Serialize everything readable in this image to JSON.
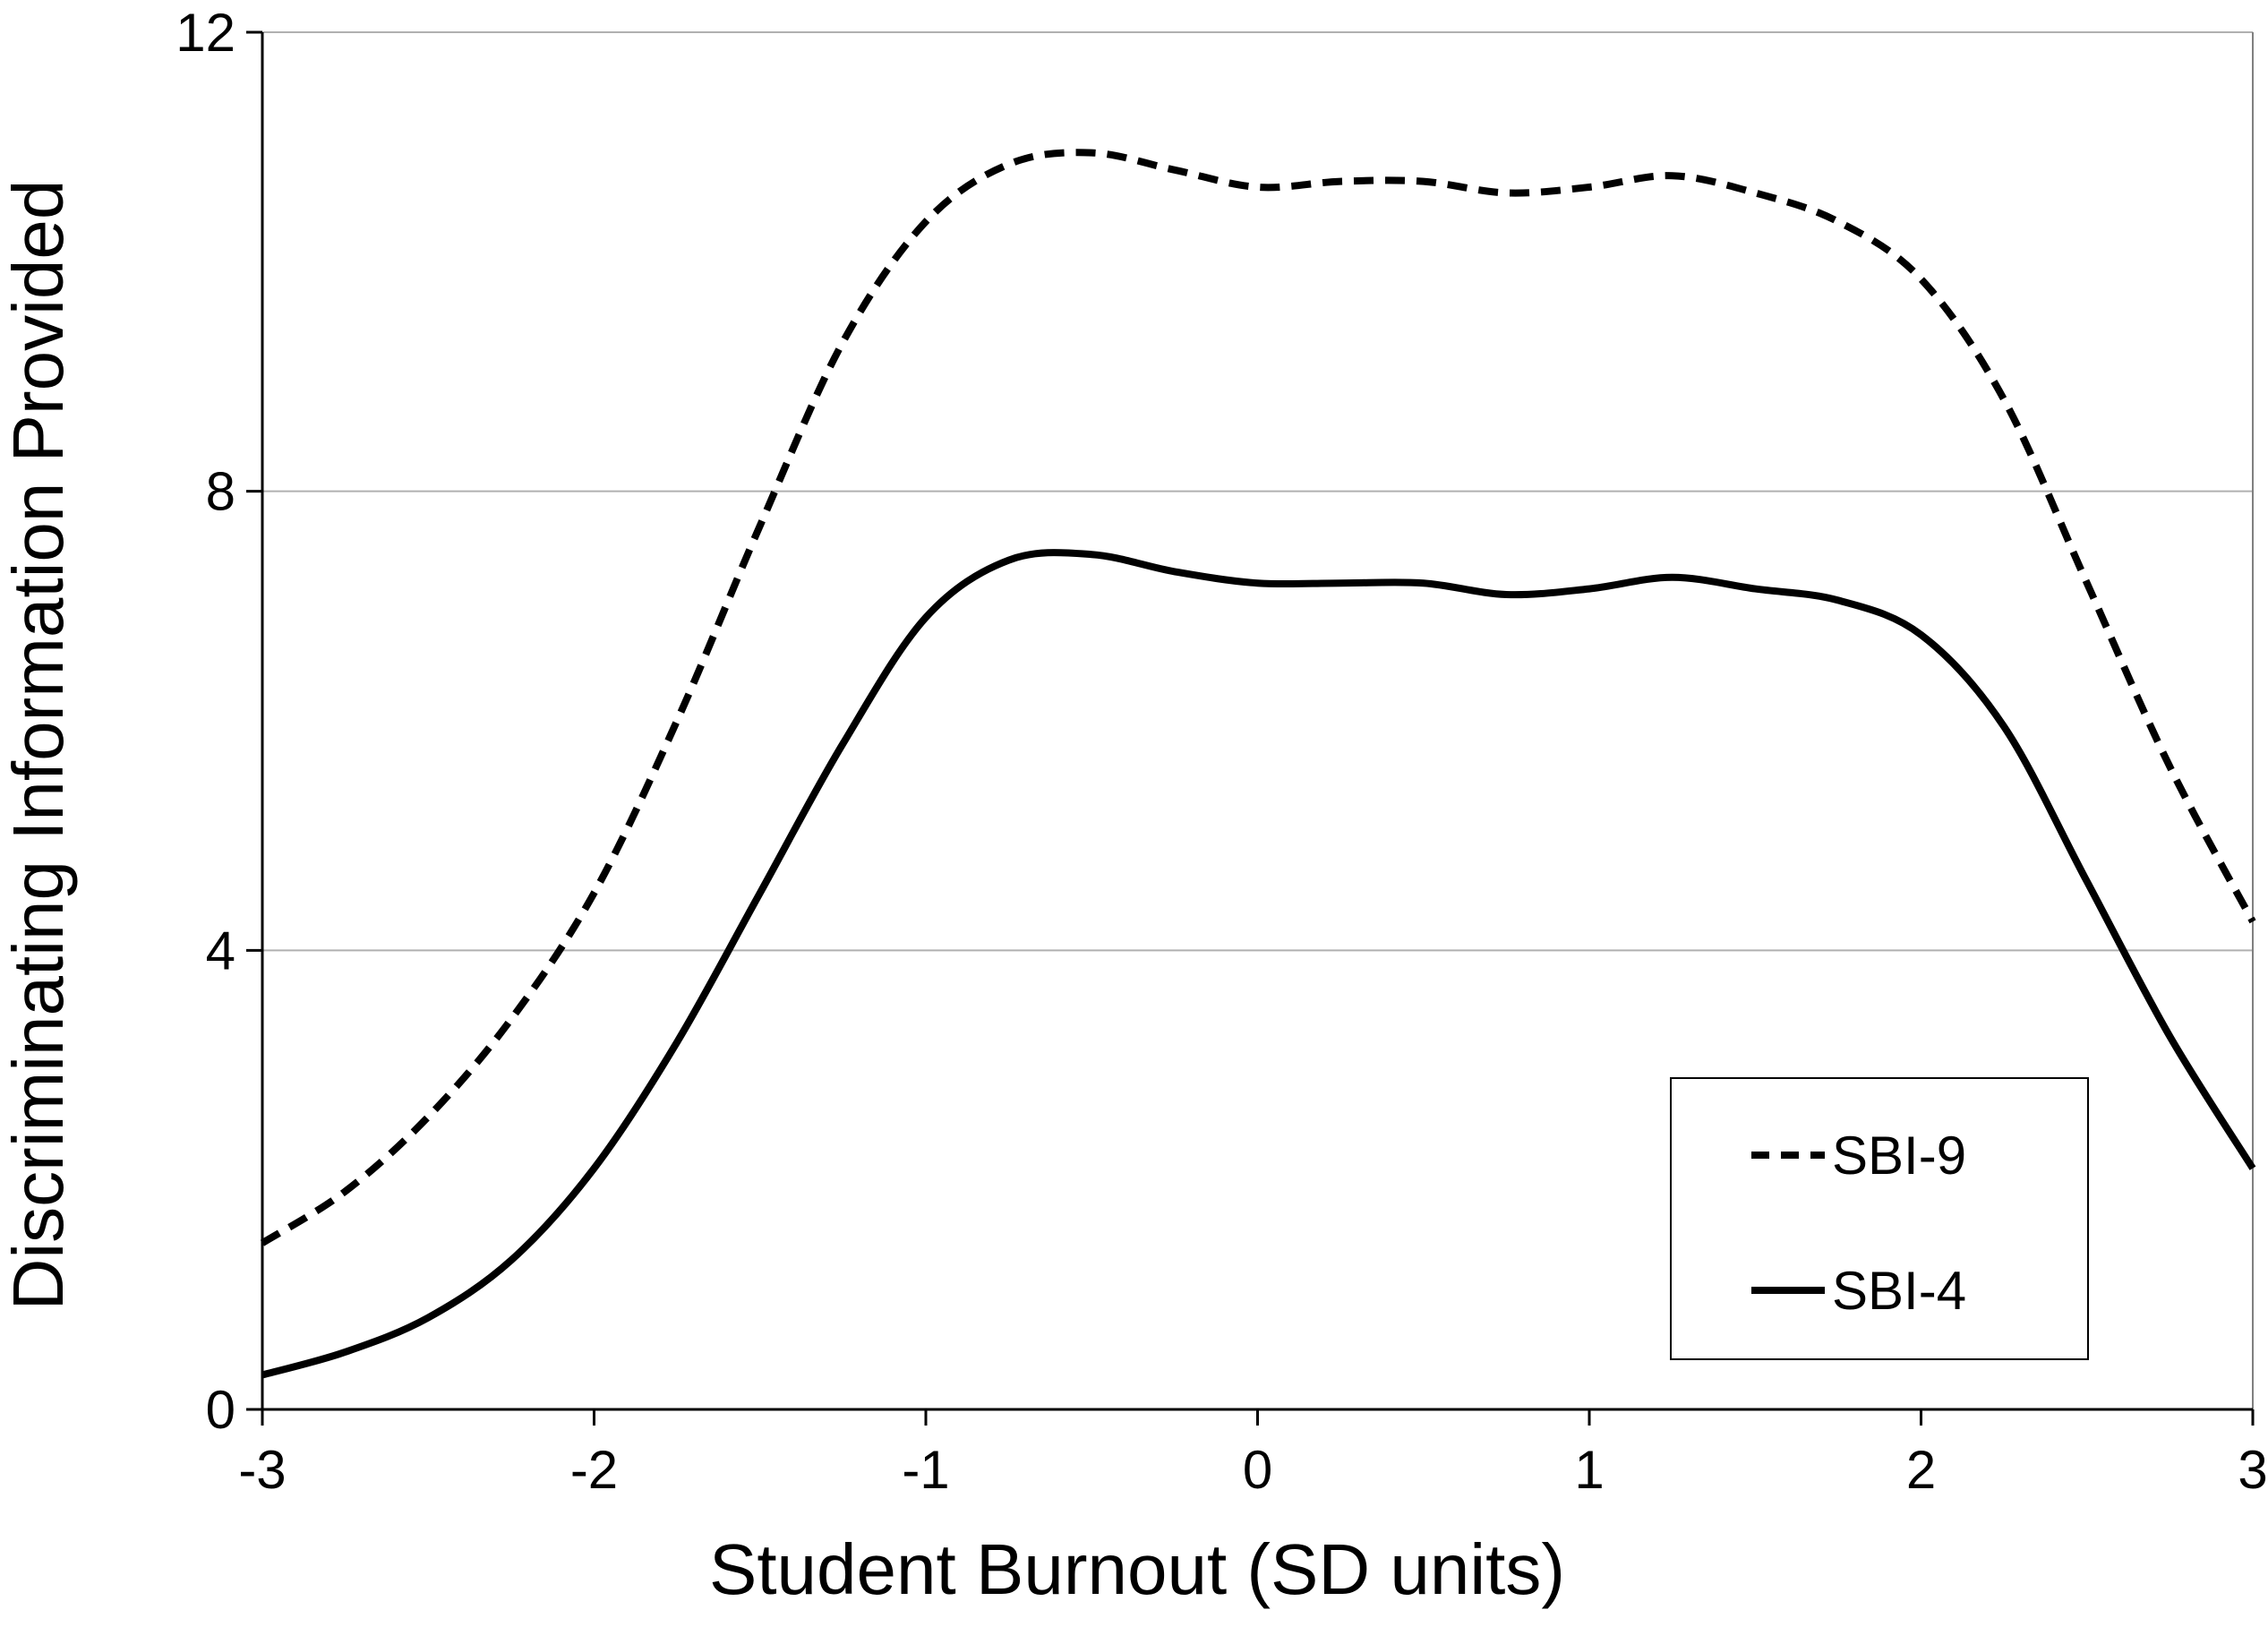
{
  "chart_data": {
    "type": "line",
    "title": "",
    "xlabel": "Student Burnout (SD units)",
    "ylabel": "Discriminating Information Provided",
    "xlim": [
      -3,
      3
    ],
    "ylim": [
      0,
      12
    ],
    "x_ticks": [
      "-3",
      "-2",
      "-1",
      "0",
      "1",
      "2",
      "3"
    ],
    "y_ticks": [
      "0",
      "4",
      "8",
      "12"
    ],
    "grid": "horizontal",
    "legend_position": "bottom-right",
    "series": [
      {
        "name": "SBI-9",
        "style": "dashed",
        "color": "#000000",
        "x": [
          -3.0,
          -2.75,
          -2.5,
          -2.25,
          -2.0,
          -1.75,
          -1.5,
          -1.25,
          -1.0,
          -0.75,
          -0.5,
          -0.25,
          0.0,
          0.25,
          0.5,
          0.75,
          1.0,
          1.25,
          1.5,
          1.75,
          2.0,
          2.25,
          2.5,
          2.75,
          3.0
        ],
        "y": [
          1.45,
          1.9,
          2.55,
          3.4,
          4.5,
          6.0,
          7.7,
          9.3,
          10.35,
          10.85,
          10.95,
          10.8,
          10.65,
          10.7,
          10.7,
          10.6,
          10.65,
          10.75,
          10.6,
          10.35,
          9.85,
          8.8,
          7.2,
          5.6,
          4.25
        ]
      },
      {
        "name": "SBI-4",
        "style": "solid",
        "color": "#000000",
        "x": [
          -3.0,
          -2.75,
          -2.5,
          -2.25,
          -2.0,
          -1.75,
          -1.5,
          -1.25,
          -1.0,
          -0.75,
          -0.5,
          -0.25,
          0.0,
          0.25,
          0.5,
          0.75,
          1.0,
          1.25,
          1.5,
          1.75,
          2.0,
          2.25,
          2.5,
          2.75,
          3.0
        ],
        "y": [
          0.3,
          0.5,
          0.8,
          1.3,
          2.1,
          3.2,
          4.5,
          5.8,
          6.9,
          7.4,
          7.45,
          7.3,
          7.2,
          7.2,
          7.2,
          7.1,
          7.15,
          7.25,
          7.15,
          7.05,
          6.75,
          5.95,
          4.6,
          3.25,
          2.1
        ]
      }
    ]
  }
}
